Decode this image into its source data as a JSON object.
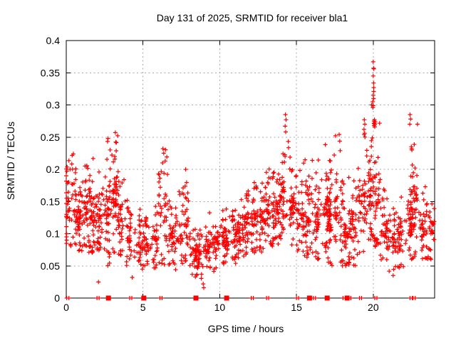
{
  "chart_data": {
    "type": "scatter",
    "title": "Day 131 of 2025, SRMTID for receiver bla1",
    "xlabel": "GPS time / hours",
    "ylabel": "SRMTID / TECUs",
    "xlim": [
      0,
      24
    ],
    "ylim": [
      0,
      0.4
    ],
    "xticks": [
      0,
      5,
      10,
      15,
      20
    ],
    "yticks": [
      0,
      0.05,
      0.1,
      0.15,
      0.2,
      0.25,
      0.3,
      0.35,
      0.4
    ],
    "grid": true,
    "legend": "none",
    "marker_shape": "plus",
    "marker_color": "#ff0000",
    "grid_color": "#a9a9a9",
    "axis_color": "#000000",
    "background_color": "#ffffff",
    "seed": 131,
    "bins_format": [
      "hour_start",
      "hour_end",
      "min",
      "dense_min",
      "dense_max",
      "max",
      "count"
    ],
    "bins": [
      [
        0.0,
        0.5,
        0.08,
        0.1,
        0.2,
        0.23,
        50
      ],
      [
        0.5,
        1.0,
        0.07,
        0.09,
        0.16,
        0.18,
        46
      ],
      [
        1.0,
        1.5,
        0.08,
        0.1,
        0.18,
        0.21,
        46
      ],
      [
        1.5,
        2.0,
        0.07,
        0.09,
        0.18,
        0.245,
        48
      ],
      [
        2.0,
        2.5,
        0.07,
        0.09,
        0.17,
        0.21,
        44
      ],
      [
        2.5,
        3.0,
        0.05,
        0.08,
        0.2,
        0.25,
        48
      ],
      [
        3.0,
        3.5,
        0.07,
        0.1,
        0.21,
        0.26,
        48
      ],
      [
        3.5,
        4.0,
        0.06,
        0.08,
        0.16,
        0.2,
        40
      ],
      [
        4.0,
        4.5,
        0.05,
        0.07,
        0.13,
        0.17,
        36
      ],
      [
        4.5,
        5.0,
        0.04,
        0.06,
        0.11,
        0.14,
        34
      ],
      [
        5.0,
        5.5,
        0.05,
        0.06,
        0.11,
        0.13,
        34
      ],
      [
        5.5,
        6.0,
        0.04,
        0.06,
        0.12,
        0.15,
        34
      ],
      [
        6.0,
        6.5,
        0.05,
        0.07,
        0.19,
        0.235,
        40
      ],
      [
        6.5,
        7.0,
        0.05,
        0.06,
        0.13,
        0.16,
        36
      ],
      [
        7.0,
        7.5,
        0.04,
        0.06,
        0.14,
        0.17,
        36
      ],
      [
        7.5,
        8.0,
        0.05,
        0.07,
        0.17,
        0.21,
        36
      ],
      [
        8.0,
        8.5,
        0.03,
        0.05,
        0.09,
        0.12,
        34
      ],
      [
        8.5,
        9.0,
        0.03,
        0.04,
        0.09,
        0.11,
        34
      ],
      [
        9.0,
        9.5,
        0.04,
        0.05,
        0.11,
        0.16,
        34
      ],
      [
        9.5,
        10.0,
        0.04,
        0.06,
        0.11,
        0.13,
        34
      ],
      [
        10.0,
        10.5,
        0.05,
        0.06,
        0.12,
        0.14,
        36
      ],
      [
        10.5,
        11.0,
        0.05,
        0.07,
        0.12,
        0.14,
        36
      ],
      [
        11.0,
        11.5,
        0.06,
        0.07,
        0.13,
        0.16,
        40
      ],
      [
        11.5,
        12.0,
        0.06,
        0.08,
        0.15,
        0.17,
        40
      ],
      [
        12.0,
        12.5,
        0.07,
        0.08,
        0.17,
        0.21,
        42
      ],
      [
        12.5,
        13.0,
        0.07,
        0.09,
        0.15,
        0.18,
        40
      ],
      [
        13.0,
        13.5,
        0.08,
        0.09,
        0.17,
        0.22,
        42
      ],
      [
        13.5,
        14.0,
        0.08,
        0.1,
        0.17,
        0.2,
        42
      ],
      [
        14.0,
        14.5,
        0.09,
        0.11,
        0.21,
        0.27,
        44
      ],
      [
        14.5,
        15.0,
        0.08,
        0.1,
        0.18,
        0.22,
        42
      ],
      [
        15.0,
        15.5,
        0.07,
        0.09,
        0.17,
        0.22,
        44
      ],
      [
        15.5,
        16.0,
        0.06,
        0.08,
        0.16,
        0.2,
        42
      ],
      [
        16.0,
        16.5,
        0.06,
        0.08,
        0.17,
        0.22,
        44
      ],
      [
        16.5,
        17.0,
        0.07,
        0.09,
        0.18,
        0.25,
        44
      ],
      [
        17.0,
        17.5,
        0.05,
        0.07,
        0.17,
        0.23,
        44
      ],
      [
        17.5,
        18.0,
        0.05,
        0.07,
        0.18,
        0.255,
        44
      ],
      [
        18.0,
        18.5,
        0.05,
        0.06,
        0.13,
        0.18,
        40
      ],
      [
        18.5,
        19.0,
        0.05,
        0.07,
        0.15,
        0.2,
        40
      ],
      [
        19.0,
        19.5,
        0.07,
        0.09,
        0.2,
        0.28,
        42
      ],
      [
        19.5,
        20.0,
        0.09,
        0.11,
        0.22,
        0.3,
        44
      ],
      [
        20.0,
        20.5,
        0.08,
        0.1,
        0.21,
        0.285,
        42
      ],
      [
        20.5,
        21.0,
        0.05,
        0.07,
        0.14,
        0.17,
        36
      ],
      [
        21.0,
        21.5,
        0.04,
        0.06,
        0.12,
        0.15,
        36
      ],
      [
        21.5,
        22.0,
        0.04,
        0.06,
        0.13,
        0.16,
        36
      ],
      [
        22.0,
        22.5,
        0.05,
        0.07,
        0.18,
        0.27,
        42
      ],
      [
        22.5,
        23.0,
        0.06,
        0.08,
        0.2,
        0.29,
        42
      ],
      [
        23.0,
        23.5,
        0.06,
        0.08,
        0.15,
        0.2,
        40
      ],
      [
        23.5,
        24.0,
        0.06,
        0.08,
        0.13,
        0.15,
        32
      ]
    ],
    "extra_points": [
      [
        0.02,
        0.155
      ],
      [
        0.02,
        0.13
      ],
      [
        0.03,
        0.125
      ],
      [
        0.03,
        0.1
      ],
      [
        0.02,
        0.095
      ],
      [
        0.03,
        0.09
      ],
      [
        0.02,
        0.085
      ],
      [
        2.1,
        0.025
      ],
      [
        2.72,
        0.248
      ],
      [
        3.2,
        0.257
      ],
      [
        3.35,
        0.252
      ],
      [
        4.3,
        0.032
      ],
      [
        6.3,
        0.232
      ],
      [
        6.35,
        0.225
      ],
      [
        8.92,
        0.022
      ],
      [
        8.96,
        0.016
      ],
      [
        14.28,
        0.285
      ],
      [
        14.32,
        0.277
      ],
      [
        14.26,
        0.267
      ],
      [
        14.3,
        0.258
      ],
      [
        17.78,
        0.254
      ],
      [
        19.42,
        0.277
      ],
      [
        19.45,
        0.27
      ],
      [
        19.4,
        0.262
      ],
      [
        19.44,
        0.256
      ],
      [
        20.0,
        0.367
      ],
      [
        20.02,
        0.357
      ],
      [
        20.04,
        0.356
      ],
      [
        20.0,
        0.345
      ],
      [
        20.02,
        0.334
      ],
      [
        20.03,
        0.327
      ],
      [
        20.03,
        0.321
      ],
      [
        20.0,
        0.315
      ],
      [
        20.02,
        0.31
      ],
      [
        19.97,
        0.305
      ],
      [
        19.9,
        0.3
      ],
      [
        20.0,
        0.299
      ],
      [
        19.98,
        0.296
      ],
      [
        20.05,
        0.275
      ],
      [
        20.08,
        0.272
      ],
      [
        20.1,
        0.27
      ],
      [
        20.06,
        0.268
      ],
      [
        20.12,
        0.274
      ],
      [
        20.08,
        0.277
      ],
      [
        20.1,
        0.266
      ],
      [
        20.04,
        0.271
      ],
      [
        21.3,
        0.035
      ],
      [
        22.4,
        0.285
      ],
      [
        22.43,
        0.278
      ],
      [
        22.38,
        0.27
      ],
      [
        22.5,
        0.232
      ],
      [
        22.52,
        0.23
      ],
      [
        22.48,
        0.235
      ]
    ],
    "zero_markers": {
      "squares_hours": [
        2.75,
        5.05,
        8.45,
        10.45,
        15.85,
        17.0,
        18.3
      ],
      "tick_pair_hours": [
        0.1,
        2.07,
        4.2,
        6.17,
        12.12,
        13.12,
        15.07,
        16.17,
        18.1,
        18.47,
        19.17,
        20.17,
        22.47,
        22.67
      ]
    }
  }
}
